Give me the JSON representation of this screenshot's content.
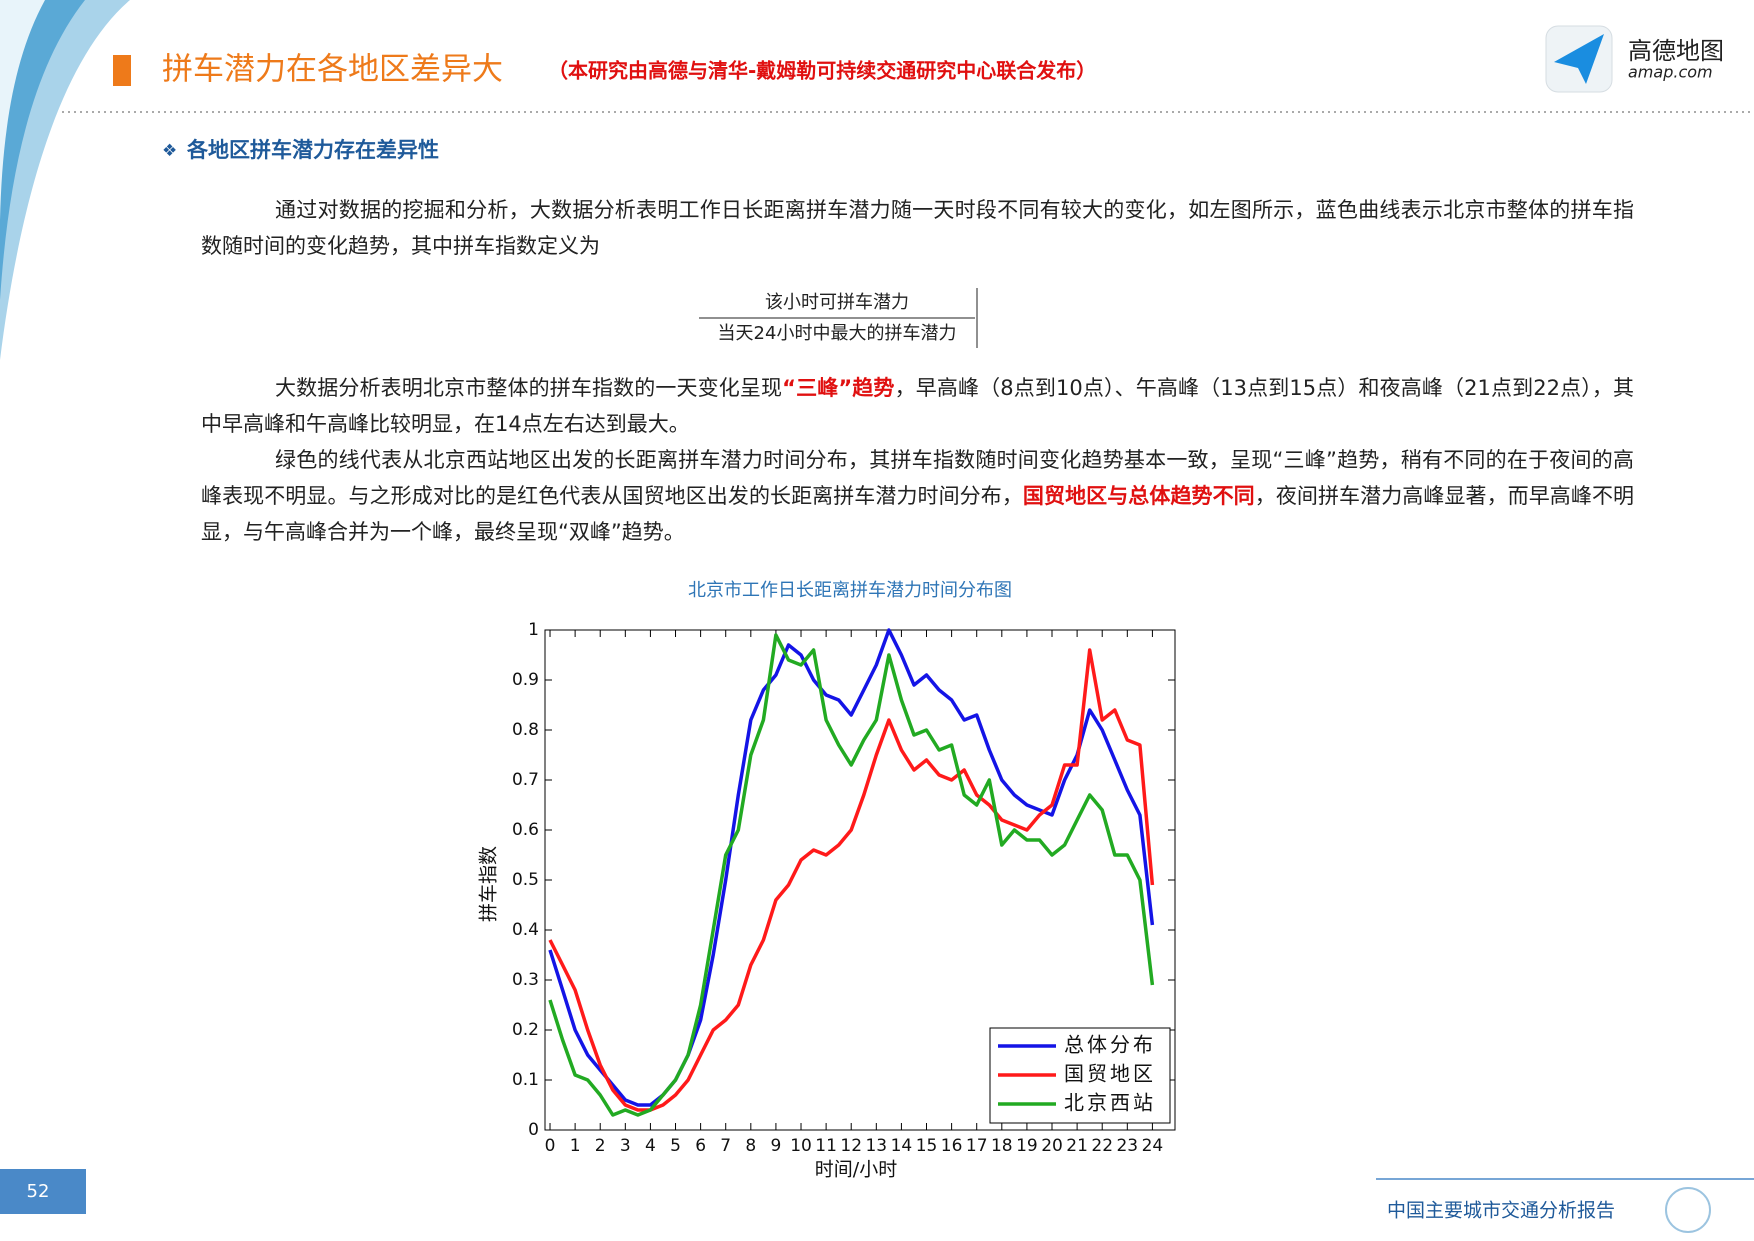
{
  "header": {
    "title": "拼车潜力在各地区差异大",
    "subtitle": "（本研究由高德与清华-戴姆勒可持续交通研究中心联合发布）",
    "logo_name": "高德地图",
    "logo_url": "amap.com"
  },
  "section_title": "各地区拼车潜力存在差异性",
  "paragraphs": [
    [
      "通过对数据的挖掘和分析，大数据分析表明工作日长距离拼车潜力随一天时段不同有较大的变化，如左图所示，蓝色曲线表示北京市整体的拼车指数随时间的变化趋势，其中拼车指数定义为"
    ],
    [
      "大数据分析表明北京市整体的拼车指数的一天变化呈现",
      "“三峰”趋势",
      "，早高峰（8点到10点）、午高峰（13点到15点）和夜高峰（21点到22点），其中早高峰和午高峰比较明显，在14点左右达到最大。"
    ],
    [
      "绿色的线代表从北京西站地区出发的长距离拼车潜力时间分布，其拼车指数随时间变化趋势基本一致，呈现“三峰”趋势，稍有不同的在于夜间的高峰表现不明显。与之形成对比的是红色代表从国贸地区出发的长距离拼车潜力时间分布，",
      "国贸地区与总体趋势不同",
      "，夜间拼车潜力高峰显著，而早高峰不明显，与午高峰合并为一个峰，最终呈现“双峰”趋势。"
    ]
  ],
  "formula": {
    "numerator": "该小时可拼车潜力",
    "denominator": "当天24小时中最大的拼车潜力"
  },
  "chart_data": {
    "type": "line",
    "title": "北京市工作日长距离拼车潜力时间分布图",
    "x_label": "时间/小时",
    "y_label": "拼车指数",
    "x": [
      0,
      0.5,
      1,
      1.5,
      2,
      2.5,
      3,
      3.5,
      4,
      4.5,
      5,
      5.5,
      6,
      6.5,
      7,
      7.5,
      8,
      8.5,
      9,
      9.5,
      10,
      10.5,
      11,
      11.5,
      12,
      12.5,
      13,
      13.5,
      14,
      14.5,
      15,
      15.5,
      16,
      16.5,
      17,
      17.5,
      18,
      18.5,
      19,
      19.5,
      20,
      20.5,
      21,
      21.5,
      22,
      22.5,
      23,
      23.5,
      24
    ],
    "series": [
      {
        "name": "总体分布",
        "color": "#1414e6",
        "values": [
          0.36,
          0.28,
          0.2,
          0.15,
          0.12,
          0.09,
          0.06,
          0.05,
          0.05,
          0.07,
          0.1,
          0.15,
          0.22,
          0.35,
          0.5,
          0.67,
          0.82,
          0.88,
          0.91,
          0.97,
          0.95,
          0.9,
          0.87,
          0.86,
          0.83,
          0.88,
          0.93,
          1.0,
          0.95,
          0.89,
          0.91,
          0.88,
          0.86,
          0.82,
          0.83,
          0.76,
          0.7,
          0.67,
          0.65,
          0.64,
          0.63,
          0.7,
          0.75,
          0.84,
          0.8,
          0.74,
          0.68,
          0.63,
          0.41
        ]
      },
      {
        "name": "国贸地区",
        "color": "#ff1a1a",
        "values": [
          0.38,
          0.33,
          0.28,
          0.2,
          0.13,
          0.08,
          0.05,
          0.04,
          0.04,
          0.05,
          0.07,
          0.1,
          0.15,
          0.2,
          0.22,
          0.25,
          0.33,
          0.38,
          0.46,
          0.49,
          0.54,
          0.56,
          0.55,
          0.57,
          0.6,
          0.67,
          0.75,
          0.82,
          0.76,
          0.72,
          0.74,
          0.71,
          0.7,
          0.72,
          0.67,
          0.65,
          0.62,
          0.61,
          0.6,
          0.63,
          0.65,
          0.73,
          0.73,
          0.96,
          0.82,
          0.84,
          0.78,
          0.77,
          0.49
        ]
      },
      {
        "name": "北京西站",
        "color": "#22aa22",
        "values": [
          0.26,
          0.18,
          0.11,
          0.1,
          0.07,
          0.03,
          0.04,
          0.03,
          0.04,
          0.07,
          0.1,
          0.15,
          0.25,
          0.4,
          0.55,
          0.6,
          0.75,
          0.82,
          0.99,
          0.94,
          0.93,
          0.96,
          0.82,
          0.77,
          0.73,
          0.78,
          0.82,
          0.95,
          0.86,
          0.79,
          0.8,
          0.76,
          0.77,
          0.67,
          0.65,
          0.7,
          0.57,
          0.6,
          0.58,
          0.58,
          0.55,
          0.57,
          0.62,
          0.67,
          0.64,
          0.55,
          0.55,
          0.5,
          0.29
        ]
      }
    ],
    "xlim": [
      -0.2,
      24.9
    ],
    "ylim": [
      0,
      1
    ],
    "xticks": [
      0,
      1,
      2,
      3,
      4,
      5,
      6,
      7,
      8,
      9,
      10,
      11,
      12,
      13,
      14,
      15,
      16,
      17,
      18,
      19,
      20,
      21,
      22,
      23,
      24
    ],
    "yticks": [
      0,
      0.1,
      0.2,
      0.3,
      0.4,
      0.5,
      0.6,
      0.7,
      0.8,
      0.9,
      1
    ],
    "legend": "lower right",
    "grid": false
  },
  "footer": {
    "page": "52",
    "report": "中国主要城市交通分析报告"
  }
}
